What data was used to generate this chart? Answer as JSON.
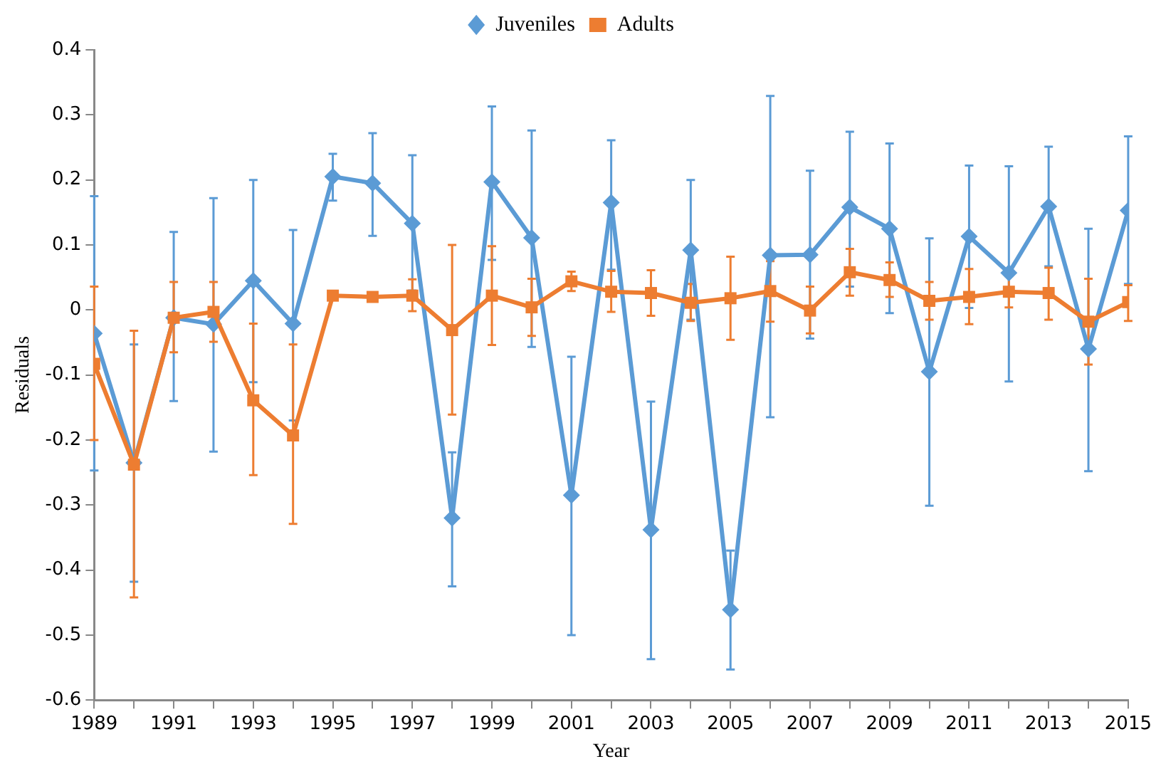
{
  "chart_data": {
    "type": "line",
    "xlabel": "Year",
    "ylabel": "Residuals",
    "x": [
      1989,
      1990,
      1991,
      1992,
      1993,
      1994,
      1995,
      1996,
      1997,
      1998,
      1999,
      2000,
      2001,
      2002,
      2003,
      2004,
      2005,
      2006,
      2007,
      2008,
      2009,
      2010,
      2011,
      2012,
      2013,
      2014,
      2015
    ],
    "series": [
      {
        "name": "Juveniles",
        "color": "#5b9bd5",
        "marker": "diamond",
        "values": [
          -0.036,
          -0.235,
          -0.012,
          -0.022,
          0.045,
          -0.021,
          0.205,
          0.195,
          0.133,
          -0.32,
          0.197,
          0.111,
          -0.285,
          0.165,
          -0.338,
          0.092,
          -0.461,
          0.084,
          0.085,
          0.158,
          0.125,
          -0.095,
          0.113,
          0.057,
          0.159,
          -0.06,
          0.153
        ],
        "errors": [
          [
            -0.247,
            0.175
          ],
          [
            -0.418,
            -0.053
          ],
          [
            -0.14,
            0.12
          ],
          [
            -0.218,
            0.172
          ],
          [
            -0.111,
            0.2
          ],
          [
            -0.17,
            0.123
          ],
          [
            0.168,
            0.24
          ],
          [
            0.114,
            0.272
          ],
          [
            0.03,
            0.238
          ],
          [
            -0.425,
            -0.219
          ],
          [
            0.077,
            0.313
          ],
          [
            -0.057,
            0.276
          ],
          [
            -0.5,
            -0.072
          ],
          [
            0.062,
            0.261
          ],
          [
            -0.537,
            -0.141
          ],
          [
            -0.015,
            0.2
          ],
          [
            -0.553,
            -0.37
          ],
          [
            -0.165,
            0.329
          ],
          [
            -0.044,
            0.214
          ],
          [
            0.036,
            0.274
          ],
          [
            -0.005,
            0.256
          ],
          [
            -0.301,
            0.11
          ],
          [
            0.003,
            0.222
          ],
          [
            -0.11,
            0.221
          ],
          [
            0.067,
            0.251
          ],
          [
            -0.248,
            0.125
          ],
          [
            0.04,
            0.267
          ]
        ]
      },
      {
        "name": "Adults",
        "color": "#ed7d31",
        "marker": "square",
        "values": [
          -0.083,
          -0.238,
          -0.012,
          -0.003,
          -0.139,
          -0.193,
          0.022,
          0.02,
          0.022,
          -0.031,
          0.022,
          0.004,
          0.044,
          0.028,
          0.026,
          0.011,
          0.018,
          0.029,
          -0.001,
          0.058,
          0.046,
          0.014,
          0.02,
          0.028,
          0.026,
          -0.018,
          0.012
        ],
        "errors": [
          [
            -0.2,
            0.036
          ],
          [
            -0.442,
            -0.032
          ],
          [
            -0.065,
            0.043
          ],
          [
            -0.049,
            0.043
          ],
          [
            -0.254,
            -0.021
          ],
          [
            -0.329,
            -0.053
          ],
          null,
          null,
          [
            -0.002,
            0.047
          ],
          [
            -0.161,
            0.1
          ],
          [
            -0.054,
            0.098
          ],
          [
            -0.04,
            0.048
          ],
          [
            0.029,
            0.059
          ],
          [
            -0.003,
            0.06
          ],
          [
            -0.009,
            0.061
          ],
          [
            -0.017,
            0.04
          ],
          [
            -0.046,
            0.082
          ],
          [
            -0.018,
            0.075
          ],
          [
            -0.036,
            0.036
          ],
          [
            0.022,
            0.094
          ],
          [
            0.02,
            0.073
          ],
          [
            -0.015,
            0.043
          ],
          [
            -0.022,
            0.063
          ],
          [
            0.004,
            0.052
          ],
          [
            -0.015,
            0.065
          ],
          [
            -0.084,
            0.048
          ],
          [
            -0.017,
            0.038
          ]
        ]
      }
    ],
    "xlim": [
      1989,
      2015
    ],
    "xticks": [
      1989,
      {
        "value": 1990,
        "label": null
      },
      1991,
      {
        "value": 1992,
        "label": null
      },
      1993,
      {
        "value": 1994,
        "label": null
      },
      1995,
      {
        "value": 1996,
        "label": null
      },
      1997,
      {
        "value": 1998,
        "label": null
      },
      1999,
      {
        "value": 2000,
        "label": null
      },
      2001,
      {
        "value": 2002,
        "label": null
      },
      2003,
      {
        "value": 2004,
        "label": null
      },
      2005,
      {
        "value": 2006,
        "label": null
      },
      2007,
      {
        "value": 2008,
        "label": null
      },
      2009,
      {
        "value": 2010,
        "label": null
      },
      2011,
      {
        "value": 2012,
        "label": null
      },
      2013,
      {
        "value": 2014,
        "label": null
      },
      2015
    ],
    "ylim": [
      -0.6,
      0.4
    ],
    "yticks": [
      -0.6,
      -0.5,
      -0.4,
      -0.3,
      -0.2,
      -0.1,
      0,
      0.1,
      0.2,
      0.3,
      0.4
    ],
    "grid": false,
    "legend": "top",
    "line_style": "solid"
  }
}
